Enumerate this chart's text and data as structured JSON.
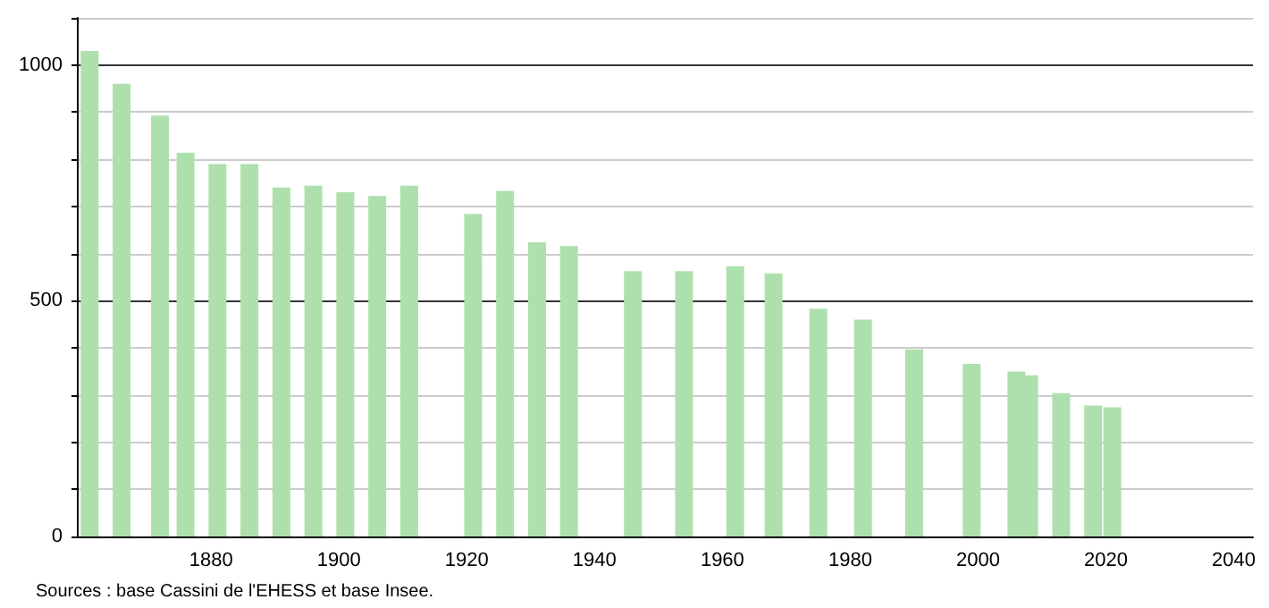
{
  "chart_data": {
    "type": "bar",
    "color": "#aee0ae",
    "x": [
      1861,
      1866,
      1872,
      1876,
      1881,
      1886,
      1891,
      1896,
      1901,
      1906,
      1911,
      1921,
      1926,
      1931,
      1936,
      1946,
      1954,
      1962,
      1968,
      1975,
      1982,
      1990,
      1999,
      2006,
      2008,
      2013,
      2018,
      2021
    ],
    "values": [
      1030,
      960,
      893,
      814,
      790,
      790,
      740,
      744,
      730,
      722,
      744,
      684,
      733,
      624,
      616,
      563,
      563,
      573,
      558,
      483,
      460,
      397,
      366,
      350,
      342,
      304,
      278,
      274
    ],
    "xlim": [
      1859,
      2043
    ],
    "xticks": [
      1880,
      1900,
      1920,
      1940,
      1960,
      1980,
      2000,
      2020,
      2040
    ],
    "ylim": [
      0,
      1100
    ],
    "yticks": [
      0,
      {
        "value": 100,
        "label": null
      },
      {
        "value": 200,
        "label": null
      },
      {
        "value": 300,
        "label": null
      },
      {
        "value": 400,
        "label": null
      },
      500,
      {
        "value": 600,
        "label": null
      },
      {
        "value": 700,
        "label": null
      },
      {
        "value": 800,
        "label": null
      },
      {
        "value": 900,
        "label": null
      },
      1000,
      {
        "value": 1100,
        "label": null
      }
    ],
    "grid": "y",
    "annotations": [
      "Sources : base Cassini de l'EHESS et base Insee."
    ]
  }
}
